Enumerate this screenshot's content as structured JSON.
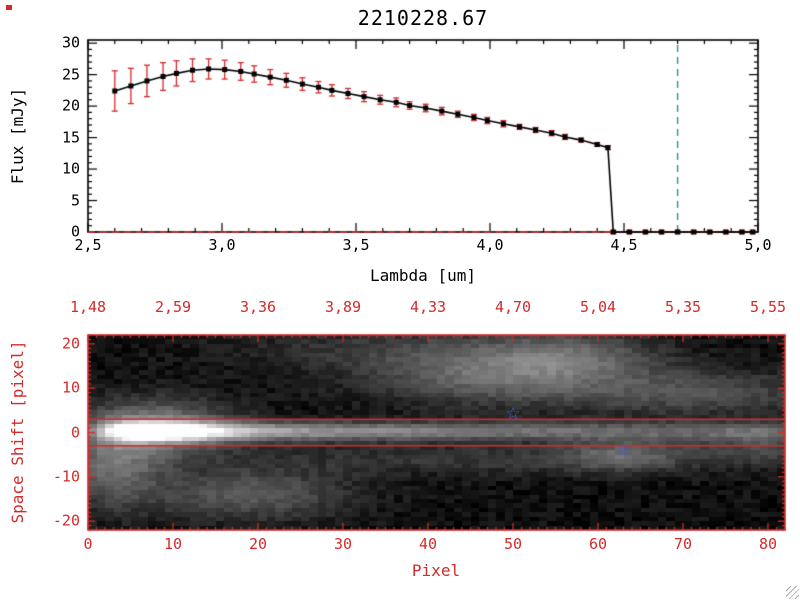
{
  "title": "2210228.67",
  "colors": {
    "axis_black": "#000000",
    "plot_red": "#d42a2a",
    "teal_line": "#2f9090",
    "star_blue": "#3c5fd7",
    "grip_gray": "#aaaaaa"
  },
  "chart_data": [
    {
      "type": "line",
      "title": "2210228.67",
      "xlabel": "Lambda [um]",
      "ylabel": "Flux [mJy]",
      "xlim": [
        2.5,
        5.0
      ],
      "ylim": [
        0,
        30.5
      ],
      "grid": false,
      "xticks": {
        "values": [
          2.5,
          3.0,
          3.5,
          4.0,
          4.5,
          5.0
        ],
        "labels": [
          "2,5",
          "3,0",
          "3,5",
          "4,0",
          "4,5",
          "5,0"
        ]
      },
      "yticks": {
        "values": [
          0,
          5,
          10,
          15,
          20,
          25,
          30
        ],
        "labels": [
          "0",
          "5",
          "10",
          "15",
          "20",
          "25",
          "30"
        ]
      },
      "marker": "square",
      "marker_color": "#000000",
      "errorbar_color": "#d42a2a",
      "x": [
        2.6,
        2.66,
        2.72,
        2.78,
        2.83,
        2.89,
        2.95,
        3.01,
        3.07,
        3.12,
        3.18,
        3.24,
        3.3,
        3.36,
        3.41,
        3.47,
        3.53,
        3.59,
        3.65,
        3.7,
        3.76,
        3.82,
        3.88,
        3.94,
        3.99,
        4.05,
        4.11,
        4.17,
        4.23,
        4.28,
        4.34,
        4.4,
        4.44,
        4.46,
        4.52,
        4.58,
        4.64,
        4.7,
        4.76,
        4.82,
        4.88,
        4.94,
        4.98
      ],
      "y": [
        22.4,
        23.2,
        24.0,
        24.7,
        25.2,
        25.7,
        25.9,
        25.8,
        25.5,
        25.1,
        24.6,
        24.1,
        23.5,
        23.0,
        22.5,
        22.0,
        21.5,
        21.0,
        20.6,
        20.1,
        19.7,
        19.2,
        18.7,
        18.2,
        17.7,
        17.2,
        16.7,
        16.2,
        15.7,
        15.1,
        14.6,
        13.9,
        13.4,
        0,
        0,
        0,
        0,
        0,
        0,
        0,
        0,
        0,
        0
      ],
      "yerr": [
        3.2,
        2.8,
        2.5,
        2.2,
        2.0,
        1.8,
        1.6,
        1.5,
        1.4,
        1.3,
        1.2,
        1.1,
        1.0,
        0.9,
        0.9,
        0.8,
        0.8,
        0.7,
        0.7,
        0.6,
        0.6,
        0.6,
        0.5,
        0.5,
        0.5,
        0.5,
        0.4,
        0.4,
        0.4,
        0.4,
        0.3,
        0.3,
        0.3,
        0.25,
        0.25,
        0.25,
        0.25,
        0.25,
        0.25,
        0.25,
        0.25,
        0.25,
        0.25
      ],
      "vline": {
        "x": 4.7,
        "color": "#2f9090",
        "style": "dashed"
      },
      "hline": {
        "y": 0,
        "color": "#d42a2a",
        "style": "dashed"
      }
    },
    {
      "type": "heatmap",
      "xlabel": "Pixel",
      "ylabel": "Space Shift [pixel]",
      "xlim": [
        0,
        82
      ],
      "ylim": [
        -22,
        22
      ],
      "xticks": {
        "values": [
          0,
          10,
          20,
          30,
          40,
          50,
          60,
          70,
          80
        ],
        "labels": [
          "0",
          "10",
          "20",
          "30",
          "40",
          "50",
          "60",
          "70",
          "80"
        ]
      },
      "yticks": {
        "values": [
          -20,
          -10,
          0,
          10,
          20
        ],
        "labels": [
          "-20",
          "-10",
          "0",
          "10",
          "20"
        ]
      },
      "top_axis": {
        "tick_values": [
          0,
          10,
          20,
          30,
          40,
          50,
          60,
          70,
          80
        ],
        "labels": [
          "1,48",
          "2,59",
          "3,36",
          "3,89",
          "4,33",
          "4,70",
          "5,04",
          "5,35",
          "5,55"
        ]
      },
      "aperture_lines_y": [
        3,
        -3
      ],
      "stars": [
        {
          "x": 50,
          "y": 4
        },
        {
          "x": 63,
          "y": -4.5
        }
      ],
      "bg": 0.035,
      "noise_amp": 0.045,
      "trace": {
        "y_center": 0.3,
        "y_sigma": 1.5,
        "profile": [
          [
            0,
            0.1
          ],
          [
            2,
            0.45
          ],
          [
            4,
            0.9
          ],
          [
            6,
            1.12
          ],
          [
            9,
            1.15
          ],
          [
            12,
            0.95
          ],
          [
            15,
            0.75
          ],
          [
            20,
            0.58
          ],
          [
            26,
            0.5
          ],
          [
            34,
            0.44
          ],
          [
            42,
            0.4
          ],
          [
            50,
            0.36
          ],
          [
            58,
            0.32
          ],
          [
            66,
            0.29
          ],
          [
            74,
            0.27
          ],
          [
            81,
            0.25
          ]
        ]
      },
      "blobs": [
        {
          "x": 8,
          "y": 1,
          "sx": 6,
          "sy": 4.5,
          "a": 0.4
        },
        {
          "x": 3,
          "y": -8,
          "sx": 4,
          "sy": 6,
          "a": 0.3
        },
        {
          "x": 19,
          "y": -14,
          "sx": 8,
          "sy": 4,
          "a": 0.26
        },
        {
          "x": 47,
          "y": 13,
          "sx": 10,
          "sy": 4.5,
          "a": 0.3
        },
        {
          "x": 57,
          "y": 17,
          "sx": 7,
          "sy": 4,
          "a": 0.24
        },
        {
          "x": 71,
          "y": 9,
          "sx": 11,
          "sy": 3.5,
          "a": 0.22
        },
        {
          "x": 45,
          "y": -6,
          "sx": 20,
          "sy": 2.5,
          "a": 0.13
        },
        {
          "x": 63,
          "y": -5,
          "sx": 5,
          "sy": 2.5,
          "a": 0.26
        },
        {
          "x": 79,
          "y": -3,
          "sx": 5,
          "sy": 3,
          "a": 0.18
        },
        {
          "x": 36,
          "y": 19,
          "sx": 14,
          "sy": 3.5,
          "a": 0.12
        }
      ]
    }
  ]
}
